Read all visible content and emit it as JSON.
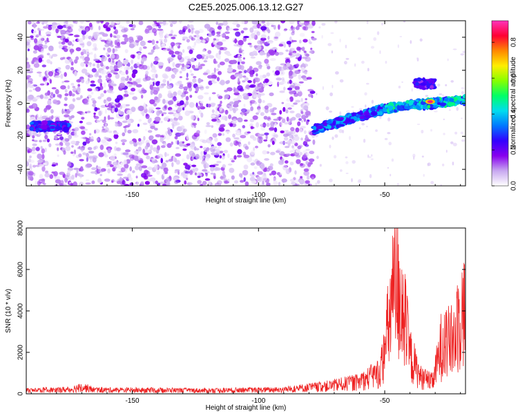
{
  "figure_title": "C2E5.2025.006.13.12.G27",
  "chart_data": [
    {
      "type": "heatmap",
      "title": "C2E5.2025.006.13.12.G27",
      "xlabel": "Height of straight line (km)",
      "ylabel": "Frequency (Hz)",
      "xlim": [
        -192,
        -18
      ],
      "ylim": [
        -50,
        50
      ],
      "x_ticks": [
        -150,
        -100,
        -50
      ],
      "y_ticks": [
        -40,
        -20,
        0,
        20,
        40
      ],
      "colorbar": {
        "label": "Normalized spectral amplitude",
        "range": [
          0,
          0.92
        ],
        "ticks": [
          0.0,
          0.2,
          0.4,
          0.6,
          0.8
        ],
        "colormap": [
          "#ffffff",
          "#c8a8f0",
          "#8800ee",
          "#3300ff",
          "#0077ff",
          "#00ddee",
          "#00ff66",
          "#88ff00",
          "#ffee00",
          "#ff8800",
          "#ff0033",
          "#ff33bb"
        ]
      },
      "noise_region_x": [
        -192,
        -78
      ],
      "noise_level": 0.08,
      "signal_segments": [
        {
          "x": [
            -190,
            -175
          ],
          "freq": -14,
          "amplitude": 0.3
        },
        {
          "x": [
            -78,
            -50
          ],
          "freq_start": -16,
          "freq_end": -3,
          "amplitude": 0.35
        },
        {
          "x": [
            -50,
            -18
          ],
          "freq_start": -3,
          "freq_end": 2,
          "amplitude": 0.45
        },
        {
          "x": [
            -38,
            -30
          ],
          "freq": 12,
          "amplitude": 0.25
        }
      ],
      "peak": {
        "x": -32,
        "freq": 1,
        "amplitude": 0.88
      },
      "grid": false
    },
    {
      "type": "line",
      "xlabel": "Height of straight line (km)",
      "ylabel": "SNR (10 * v/v)",
      "xlim": [
        -192,
        -18
      ],
      "ylim": [
        0,
        8000
      ],
      "x_ticks": [
        -150,
        -100,
        -50
      ],
      "y_ticks": [
        0,
        2000,
        4000,
        6000,
        8000
      ],
      "color": "#ee2222",
      "grid": false,
      "envelope": [
        {
          "x": -192,
          "y": 250
        },
        {
          "x": -175,
          "y": 320
        },
        {
          "x": -170,
          "y": 520
        },
        {
          "x": -165,
          "y": 300
        },
        {
          "x": -120,
          "y": 250
        },
        {
          "x": -90,
          "y": 320
        },
        {
          "x": -72,
          "y": 600
        },
        {
          "x": -60,
          "y": 900
        },
        {
          "x": -52,
          "y": 1600
        },
        {
          "x": -50,
          "y": 3200
        },
        {
          "x": -48,
          "y": 6000
        },
        {
          "x": -46,
          "y": 8000
        },
        {
          "x": -44,
          "y": 7800
        },
        {
          "x": -42,
          "y": 5500
        },
        {
          "x": -40,
          "y": 3000
        },
        {
          "x": -36,
          "y": 1300
        },
        {
          "x": -31,
          "y": 900
        },
        {
          "x": -29,
          "y": 2500
        },
        {
          "x": -27,
          "y": 4200
        },
        {
          "x": -24,
          "y": 3800
        },
        {
          "x": -22,
          "y": 4500
        },
        {
          "x": -20,
          "y": 6500
        },
        {
          "x": -18,
          "y": 6200
        }
      ]
    }
  ]
}
